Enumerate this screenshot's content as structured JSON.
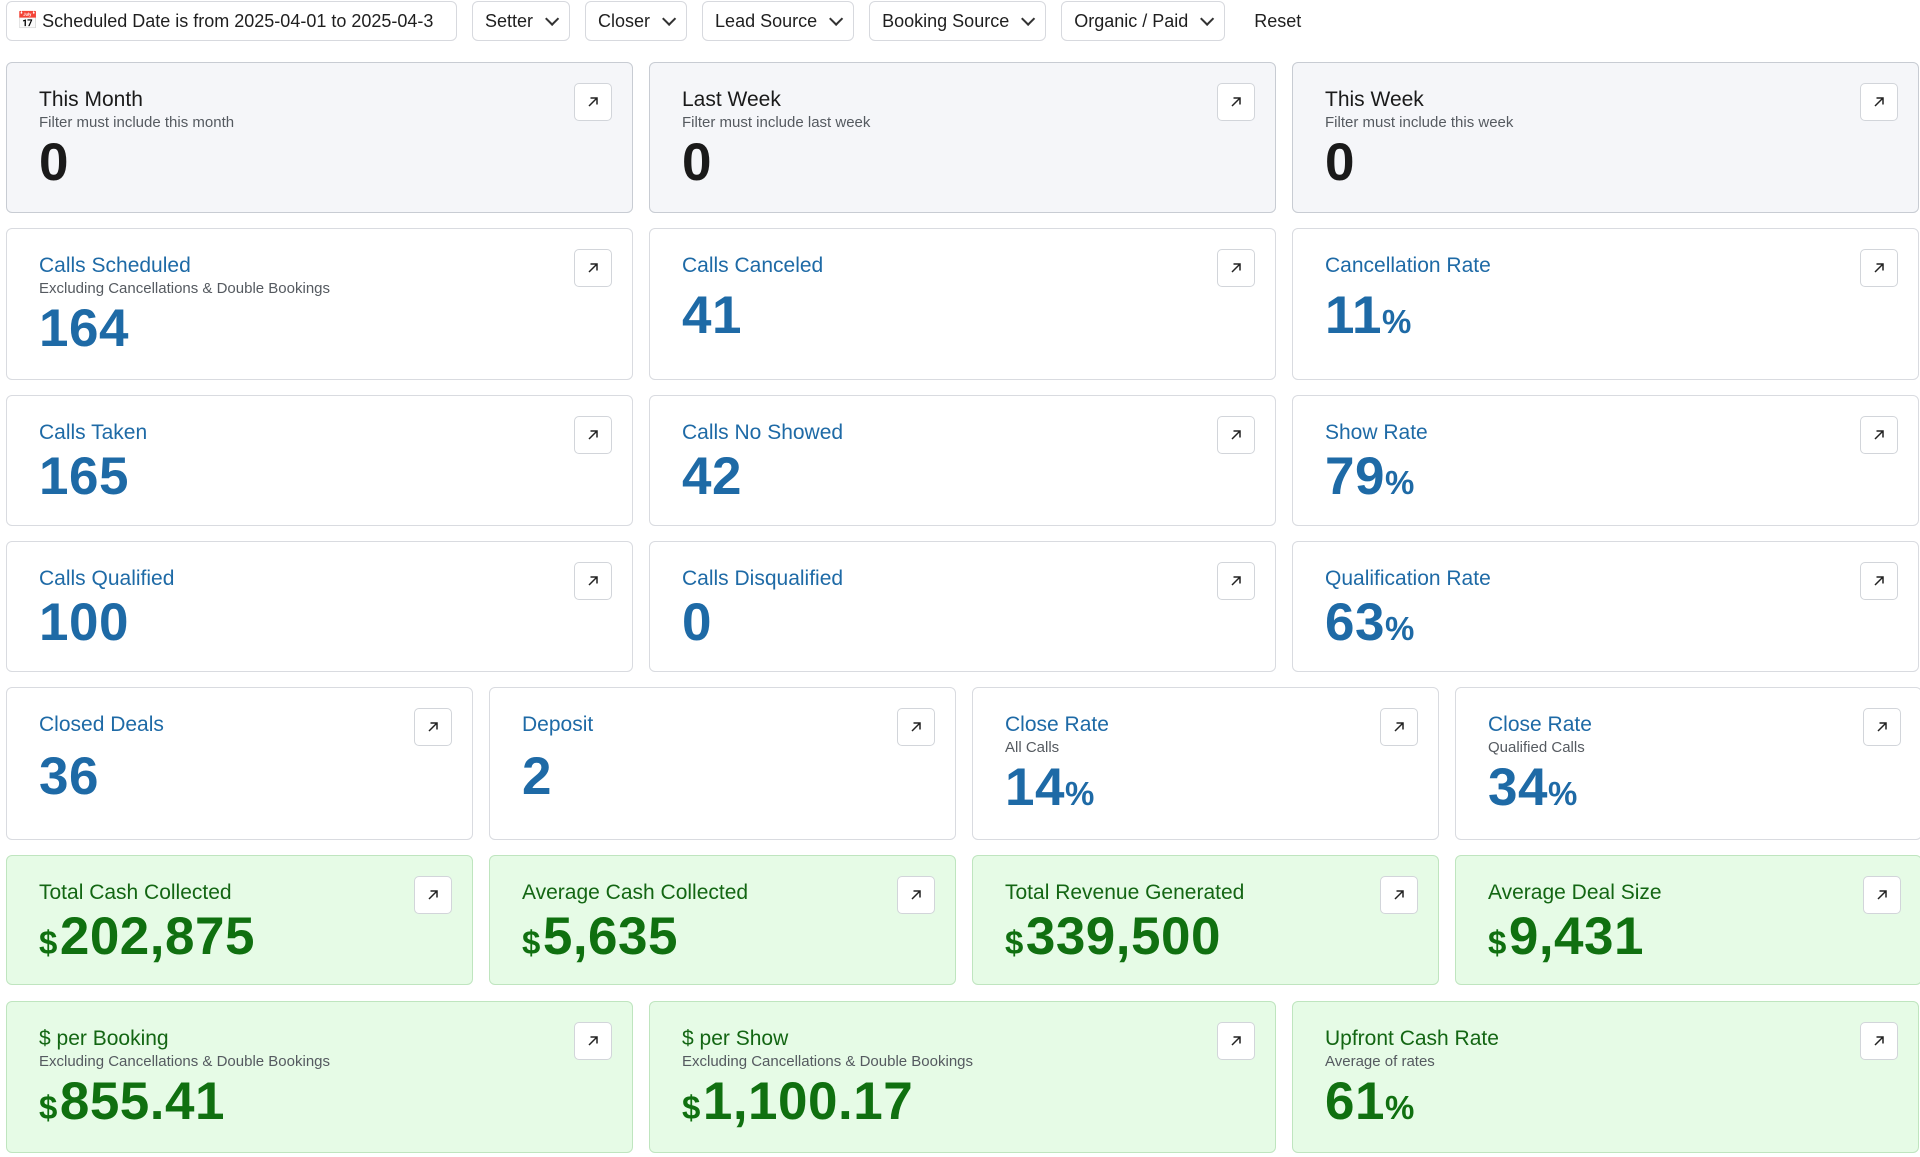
{
  "filters": {
    "date_icon": "calendar-icon",
    "date_label": "Scheduled Date is from 2025-04-01 to 2025-04-3",
    "dropdowns": [
      "Setter",
      "Closer",
      "Lead Source",
      "Booking Source",
      "Organic / Paid"
    ],
    "reset_label": "Reset"
  },
  "row1": [
    {
      "title": "This Month",
      "subtitle": "Filter must include this month",
      "value": "0"
    },
    {
      "title": "Last Week",
      "subtitle": "Filter must include last week",
      "value": "0"
    },
    {
      "title": "This Week",
      "subtitle": "Filter must include this week",
      "value": "0"
    }
  ],
  "row2": [
    {
      "title": "Calls Scheduled",
      "subtitle": "Excluding Cancellations & Double Bookings",
      "value": "164"
    },
    {
      "title": "Calls Canceled",
      "value": "41"
    },
    {
      "title": "Cancellation Rate",
      "value": "11",
      "unit": "%"
    }
  ],
  "row3": [
    {
      "title": "Calls Taken",
      "value": "165"
    },
    {
      "title": "Calls No Showed",
      "value": "42"
    },
    {
      "title": "Show Rate",
      "value": "79",
      "unit": "%"
    }
  ],
  "row4": [
    {
      "title": "Calls Qualified",
      "value": "100"
    },
    {
      "title": "Calls Disqualified",
      "value": "0"
    },
    {
      "title": "Qualification Rate",
      "value": "63",
      "unit": "%"
    }
  ],
  "row5": [
    {
      "title": "Closed Deals",
      "value": "36"
    },
    {
      "title": "Deposit",
      "value": "2"
    },
    {
      "title": "Close Rate",
      "subtitle": "All Calls",
      "value": "14",
      "unit": "%"
    },
    {
      "title": "Close Rate",
      "subtitle": "Qualified Calls",
      "value": "34",
      "unit": "%"
    }
  ],
  "row6": [
    {
      "title": "Total Cash Collected",
      "currency": "$",
      "value": "202,875"
    },
    {
      "title": "Average Cash Collected",
      "currency": "$",
      "value": "5,635"
    },
    {
      "title": "Total Revenue Generated",
      "currency": "$",
      "value": "339,500"
    },
    {
      "title": "Average Deal Size",
      "currency": "$",
      "value": "9,431"
    }
  ],
  "row7": [
    {
      "title": "$ per Booking",
      "subtitle": "Excluding Cancellations & Double Bookings",
      "currency": "$",
      "value": "855.41"
    },
    {
      "title": "$ per Show",
      "subtitle": "Excluding Cancellations & Double Bookings",
      "currency": "$",
      "value": "1,100.17"
    },
    {
      "title": "Upfront Cash Rate",
      "subtitle": "Average of rates",
      "value": "61",
      "unit": "%"
    }
  ],
  "icons": {
    "expand": "arrow-up-right-icon",
    "dropdown": "chevron-down-icon"
  }
}
